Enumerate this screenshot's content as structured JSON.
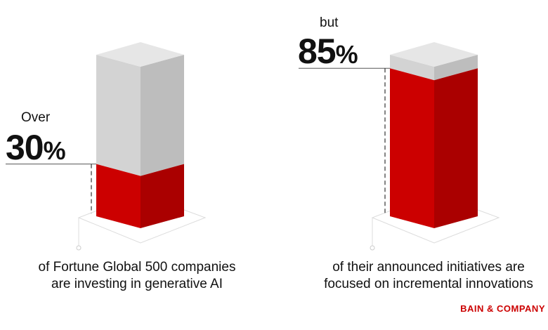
{
  "chart_data": {
    "type": "bar",
    "bars": [
      {
        "prefix": "Over",
        "value": 30,
        "unit": "%",
        "caption_line1": "of Fortune Global 500 companies",
        "caption_line2": "are investing in generative AI"
      },
      {
        "prefix": "but",
        "value": 85,
        "unit": "%",
        "caption_line1": "of their announced initiatives are",
        "caption_line2": "focused on incremental innovations"
      }
    ],
    "colors": {
      "fill_front": "#cc0000",
      "fill_side": "#aa0000",
      "empty_front": "#d3d3d3",
      "empty_side": "#bdbdbd",
      "top": "#e6e6e6"
    }
  },
  "brand": "BAIN & COMPANY"
}
